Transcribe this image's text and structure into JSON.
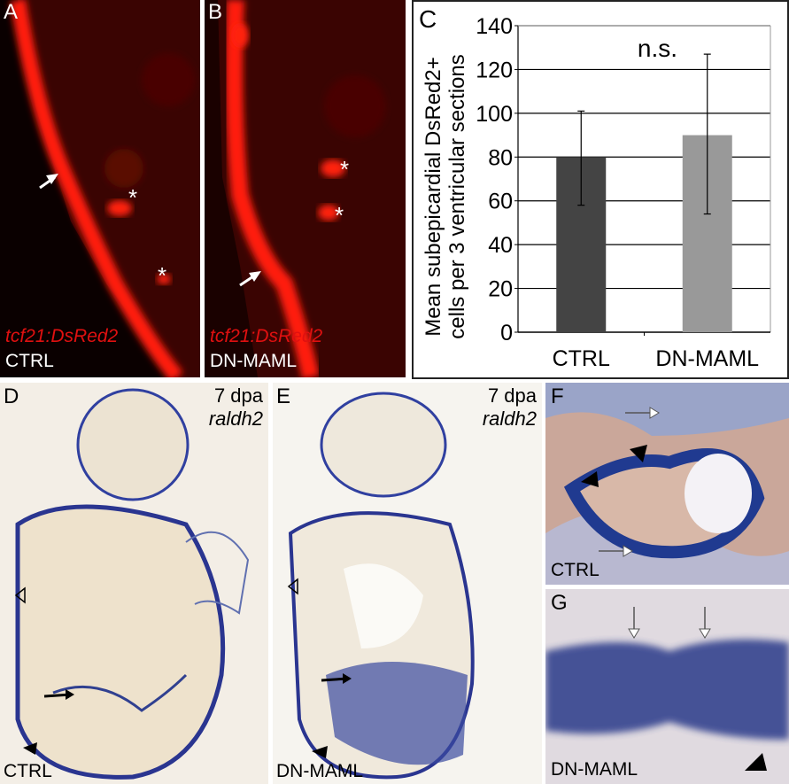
{
  "panels": {
    "A": {
      "letter": "A",
      "marker": "tcf21:DsRed2",
      "condition": "CTRL"
    },
    "B": {
      "letter": "B",
      "marker": "tcf21:DsRed2",
      "condition": "DN-MAML"
    },
    "C": {
      "letter": "C"
    },
    "D": {
      "letter": "D",
      "timepoint": "7 dpa",
      "gene": "raldh2",
      "condition": "CTRL"
    },
    "E": {
      "letter": "E",
      "timepoint": "7 dpa",
      "gene": "raldh2",
      "condition": "DN-MAML"
    },
    "F": {
      "letter": "F",
      "condition": "CTRL"
    },
    "G": {
      "letter": "G",
      "condition": "DN-MAML"
    }
  },
  "chart_data": {
    "type": "bar",
    "categories": [
      "CTRL",
      "DN-MAML"
    ],
    "values": [
      80,
      90
    ],
    "error_low": [
      58,
      54
    ],
    "error_high": [
      101,
      127
    ],
    "bar_colors": [
      "#444444",
      "#999999"
    ],
    "ylabel": "Mean subepicardial DsRed2+ cells per 3 ventricular sections",
    "ylabel_lines": [
      "Mean subepicardial DsRed2+",
      "cells per 3 ventricular sections"
    ],
    "yticks": [
      "0",
      "20",
      "40",
      "60",
      "80",
      "100",
      "120",
      "140"
    ],
    "ylim": [
      0,
      140
    ],
    "grid": true,
    "annotation": "n.s."
  }
}
